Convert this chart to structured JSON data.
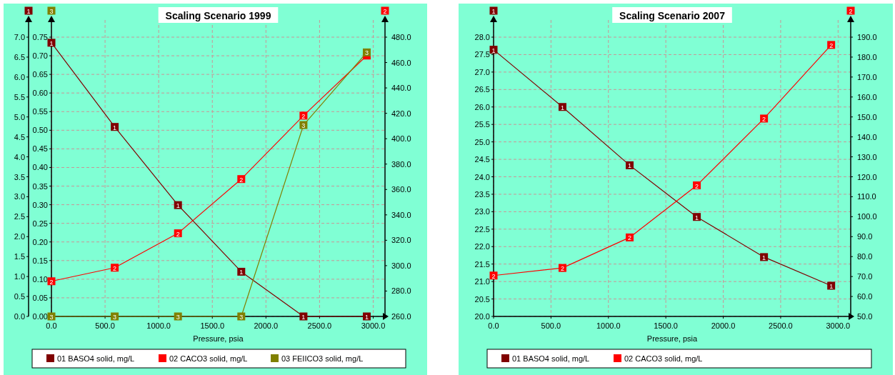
{
  "chart_data": [
    {
      "type": "line",
      "title": "Scaling Scenario 1999",
      "annotations": [
        "1",
        "2",
        "3"
      ],
      "xlabel": "Pressure, psia",
      "grid": true,
      "legend": "bottom",
      "marker": "square",
      "x": [
        0,
        590,
        1180,
        1770,
        2350,
        2940
      ],
      "xlim": [
        0,
        3110
      ],
      "xticks": [
        {
          "value": 0,
          "label": "0.0"
        },
        {
          "value": 500,
          "label": "500.0"
        },
        {
          "value": 1000,
          "label": "1000.0"
        },
        {
          "value": 1500,
          "label": "1500.0"
        },
        {
          "value": 2000,
          "label": "2000.0"
        },
        {
          "value": 2500,
          "label": "2500.0"
        },
        {
          "value": 3000,
          "label": "3000.0"
        }
      ],
      "ylim": [
        0,
        7.0
      ],
      "yticks": [
        {
          "value": 0,
          "label": "0.0"
        },
        {
          "value": 0.5,
          "label": "0.5"
        },
        {
          "value": 1,
          "label": "1.0"
        },
        {
          "value": 1.5,
          "label": "1.5"
        },
        {
          "value": 2,
          "label": "2.0"
        },
        {
          "value": 2.5,
          "label": "2.5"
        },
        {
          "value": 3,
          "label": "3.0"
        },
        {
          "value": 3.5,
          "label": "3.5"
        },
        {
          "value": 4,
          "label": "4.0"
        },
        {
          "value": 4.5,
          "label": "4.5"
        },
        {
          "value": 5,
          "label": "5.0"
        },
        {
          "value": 5.5,
          "label": "5.5"
        },
        {
          "value": 6,
          "label": "6.0"
        },
        {
          "value": 6.5,
          "label": "6.5"
        },
        {
          "value": 7,
          "label": "7.0"
        }
      ],
      "y3lim": [
        0,
        0.75
      ],
      "y3ticks": [
        {
          "value": 0,
          "label": "0.00"
        },
        {
          "value": 0.05,
          "label": "0.05"
        },
        {
          "value": 0.1,
          "label": "0.10"
        },
        {
          "value": 0.15,
          "label": "0.15"
        },
        {
          "value": 0.2,
          "label": "0.20"
        },
        {
          "value": 0.25,
          "label": "0.25"
        },
        {
          "value": 0.3,
          "label": "0.30"
        },
        {
          "value": 0.35,
          "label": "0.35"
        },
        {
          "value": 0.4,
          "label": "0.40"
        },
        {
          "value": 0.45,
          "label": "0.45"
        },
        {
          "value": 0.5,
          "label": "0.50"
        },
        {
          "value": 0.55,
          "label": "0.55"
        },
        {
          "value": 0.6,
          "label": "0.60"
        },
        {
          "value": 0.65,
          "label": "0.65"
        },
        {
          "value": 0.7,
          "label": "0.70"
        },
        {
          "value": 0.75,
          "label": "0.75"
        }
      ],
      "y2lim": [
        260,
        480
      ],
      "y2ticks": [
        {
          "value": 260,
          "label": "260.0"
        },
        {
          "value": 280,
          "label": "280.0"
        },
        {
          "value": 300,
          "label": "300.0"
        },
        {
          "value": 320,
          "label": "320.0"
        },
        {
          "value": 340,
          "label": "340.0"
        },
        {
          "value": 360,
          "label": "360.0"
        },
        {
          "value": 380,
          "label": "380.0"
        },
        {
          "value": 400,
          "label": "400.0"
        },
        {
          "value": 420,
          "label": "420.0"
        },
        {
          "value": 440,
          "label": "440.0"
        },
        {
          "value": 460,
          "label": "460.0"
        },
        {
          "value": 480,
          "label": "480.0"
        }
      ],
      "series": [
        {
          "name": "01 BASO4 solid, mg/L",
          "color": "#800000",
          "values": [
            6.86,
            4.75,
            2.79,
            1.12,
            0,
            0
          ]
        },
        {
          "name": "02 CACO3 solid, mg/L",
          "color": "#ff0000",
          "axis": "y2",
          "values": [
            287.7,
            298.4,
            325.5,
            368.2,
            418.2,
            465.5
          ]
        },
        {
          "name": "03 FEIICO3 solid, mg/L",
          "color": "#808000",
          "axis": "y3",
          "values": [
            0,
            0,
            0,
            0,
            0.514,
            0.709
          ]
        }
      ]
    },
    {
      "type": "line",
      "title": "Scaling Scenario 2007",
      "annotations": [
        "1",
        "2"
      ],
      "xlabel": "Pressure, psia",
      "grid": true,
      "legend": "bottom",
      "marker": "square",
      "x": [
        0,
        600,
        1185,
        1770,
        2355,
        2940
      ],
      "xlim": [
        0,
        3110
      ],
      "xticks": [
        {
          "value": 0,
          "label": "0.0"
        },
        {
          "value": 500,
          "label": "500.0"
        },
        {
          "value": 1000,
          "label": "1000.0"
        },
        {
          "value": 1500,
          "label": "1500.0"
        },
        {
          "value": 2000,
          "label": "2000.0"
        },
        {
          "value": 2500,
          "label": "2500.0"
        },
        {
          "value": 3000,
          "label": "3000.0"
        }
      ],
      "ylim": [
        20,
        28
      ],
      "yticks": [
        {
          "value": 20,
          "label": "20.0"
        },
        {
          "value": 20.5,
          "label": "20.5"
        },
        {
          "value": 21,
          "label": "21.0"
        },
        {
          "value": 21.5,
          "label": "21.5"
        },
        {
          "value": 22,
          "label": "22.0"
        },
        {
          "value": 22.5,
          "label": "22.5"
        },
        {
          "value": 23,
          "label": "23.0"
        },
        {
          "value": 23.5,
          "label": "23.5"
        },
        {
          "value": 24,
          "label": "24.0"
        },
        {
          "value": 24.5,
          "label": "24.5"
        },
        {
          "value": 25,
          "label": "25.0"
        },
        {
          "value": 25.5,
          "label": "25.5"
        },
        {
          "value": 26,
          "label": "26.0"
        },
        {
          "value": 26.5,
          "label": "26.5"
        },
        {
          "value": 27,
          "label": "27.0"
        },
        {
          "value": 27.5,
          "label": "27.5"
        },
        {
          "value": 28,
          "label": "28.0"
        }
      ],
      "y2lim": [
        50,
        190
      ],
      "y2ticks": [
        {
          "value": 50,
          "label": "50.0"
        },
        {
          "value": 60,
          "label": "60.0"
        },
        {
          "value": 70,
          "label": "70.0"
        },
        {
          "value": 80,
          "label": "80.0"
        },
        {
          "value": 90,
          "label": "90.0"
        },
        {
          "value": 100,
          "label": "100.0"
        },
        {
          "value": 110,
          "label": "110.0"
        },
        {
          "value": 120,
          "label": "120.0"
        },
        {
          "value": 130,
          "label": "130.0"
        },
        {
          "value": 140,
          "label": "140.0"
        },
        {
          "value": 150,
          "label": "150.0"
        },
        {
          "value": 160,
          "label": "160.0"
        },
        {
          "value": 170,
          "label": "170.0"
        },
        {
          "value": 180,
          "label": "180.0"
        },
        {
          "value": 190,
          "label": "190.0"
        }
      ],
      "series": [
        {
          "name": "01 BASO4 solid, mg/L",
          "color": "#800000",
          "values": [
            27.64,
            26.0,
            24.33,
            22.85,
            21.7,
            20.88
          ]
        },
        {
          "name": "02 CACO3 solid, mg/L",
          "color": "#ff0000",
          "axis": "y2",
          "values": [
            70.5,
            74.3,
            89.6,
            115.7,
            149.2,
            186.1
          ]
        }
      ]
    }
  ]
}
